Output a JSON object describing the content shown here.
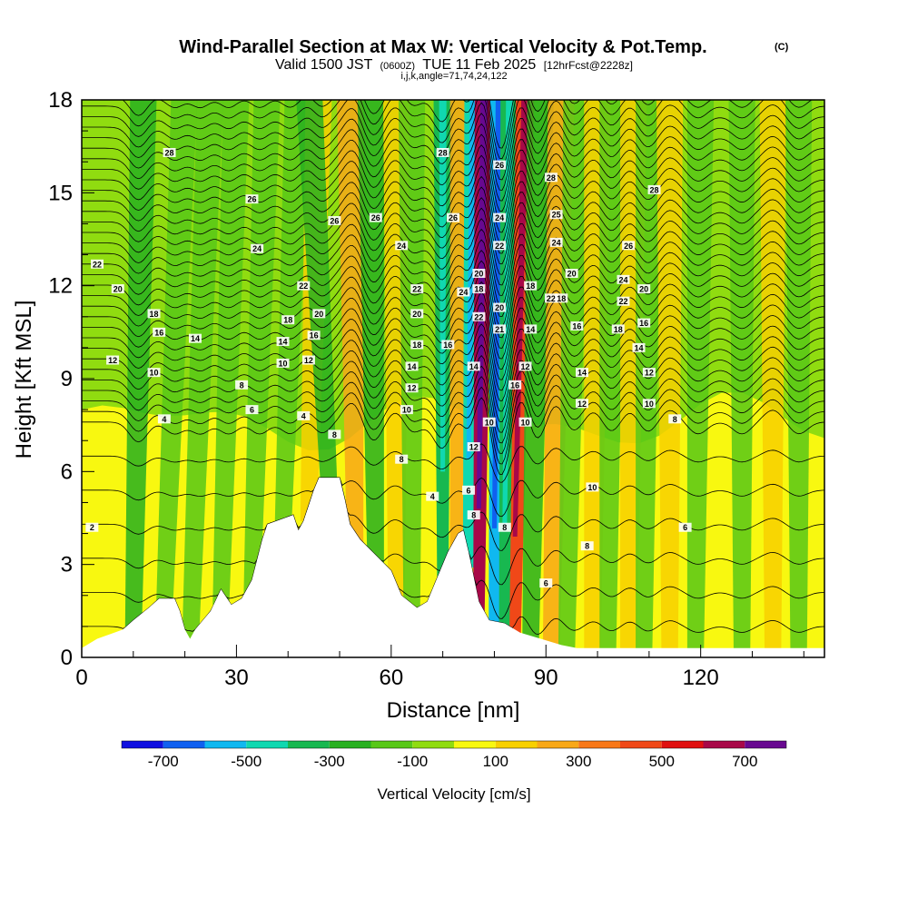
{
  "chart_data": {
    "type": "heatmap",
    "title": "Wind-Parallel Section at Max W: Vertical Velocity & Pot.Temp.",
    "title_mark": "(C)",
    "subtitle_parts": [
      "Valid 1500 JST",
      "(0600Z)",
      "TUE 11 Feb 2025",
      "[12hrFcst@2228z]"
    ],
    "subtitle2": "i,j,k,angle=71,74,24,122",
    "xlabel": "Distance [nm]",
    "ylabel": "Height [Kft MSL]",
    "xlim": [
      0,
      144
    ],
    "ylim": [
      0,
      18
    ],
    "x_ticks": [
      0,
      30,
      60,
      90,
      120
    ],
    "y_ticks": [
      0,
      3,
      6,
      9,
      12,
      15,
      18
    ],
    "colorbar": {
      "label": "Vertical Velocity [cm/s]",
      "tick_labels": [
        "-700",
        "-500",
        "-300",
        "-100",
        "100",
        "300",
        "500",
        "700"
      ],
      "bounds": [
        -800,
        800
      ],
      "colors": [
        "#1010e0",
        "#1060f0",
        "#10b8f0",
        "#10d8b0",
        "#18b850",
        "#28b020",
        "#58c818",
        "#90dc10",
        "#f8f810",
        "#f8d000",
        "#f8a818",
        "#f87818",
        "#f04818",
        "#e01010",
        "#a80848",
        "#680890"
      ]
    },
    "terrain_nm_kft": [
      [
        0,
        0.3
      ],
      [
        3,
        0.6
      ],
      [
        8,
        0.9
      ],
      [
        10,
        1.2
      ],
      [
        13,
        1.6
      ],
      [
        15,
        1.9
      ],
      [
        18,
        1.9
      ],
      [
        19,
        1.5
      ],
      [
        20,
        0.9
      ],
      [
        21,
        0.6
      ],
      [
        22,
        0.9
      ],
      [
        25,
        1.5
      ],
      [
        27,
        2.2
      ],
      [
        29,
        1.7
      ],
      [
        31,
        1.9
      ],
      [
        33,
        2.5
      ],
      [
        35,
        3.8
      ],
      [
        36,
        4.3
      ],
      [
        41,
        4.6
      ],
      [
        42,
        4.1
      ],
      [
        43,
        4.4
      ],
      [
        44,
        4.9
      ],
      [
        45,
        5.4
      ],
      [
        46,
        5.8
      ],
      [
        50,
        5.8
      ],
      [
        51,
        5.1
      ],
      [
        52,
        4.3
      ],
      [
        54,
        3.8
      ],
      [
        57,
        3.3
      ],
      [
        60,
        2.8
      ],
      [
        62,
        2.0
      ],
      [
        65,
        1.6
      ],
      [
        67,
        1.8
      ],
      [
        69,
        2.6
      ],
      [
        71,
        3.4
      ],
      [
        73,
        4.0
      ],
      [
        74,
        4.1
      ],
      [
        75,
        3.4
      ],
      [
        76,
        2.6
      ],
      [
        77,
        1.8
      ],
      [
        79,
        1.2
      ],
      [
        82,
        1.1
      ],
      [
        85,
        0.8
      ],
      [
        89,
        0.6
      ],
      [
        93,
        0.4
      ],
      [
        96,
        0.3
      ],
      [
        100,
        0.3
      ],
      [
        144,
        0.3
      ]
    ],
    "w_bands_cm_s": [
      {
        "x_bottom": 10,
        "x_top": 12,
        "w": -250
      },
      {
        "x_bottom": 16,
        "x_top": 20,
        "w": -150
      },
      {
        "x_bottom": 21,
        "x_top": 25,
        "w": -150
      },
      {
        "x_bottom": 27,
        "x_top": 30,
        "w": -150
      },
      {
        "x_bottom": 33,
        "x_top": 36,
        "w": -150
      },
      {
        "x_bottom": 39,
        "x_top": 42,
        "w": -150
      },
      {
        "x_bottom": 44,
        "x_top": 46,
        "w": 150
      },
      {
        "x_bottom": 48,
        "x_top": 44,
        "w": -250
      },
      {
        "x_bottom": 53,
        "x_top": 52,
        "w": 250
      },
      {
        "x_bottom": 57,
        "x_top": 56,
        "w": -250
      },
      {
        "x_bottom": 61,
        "x_top": 61,
        "w": 150
      },
      {
        "x_bottom": 64,
        "x_top": 64,
        "w": -150
      },
      {
        "x_bottom": 70,
        "x_top": 70,
        "w": -350
      },
      {
        "x_bottom": 73,
        "x_top": 74,
        "w": 200
      },
      {
        "x_bottom": 75,
        "x_top": 76,
        "w": -450
      },
      {
        "x_bottom": 77,
        "x_top": 78,
        "w": 650
      },
      {
        "x_bottom": 80,
        "x_top": 81,
        "w": -550
      },
      {
        "x_bottom": 82,
        "x_top": 83,
        "w": -350
      },
      {
        "x_bottom": 84,
        "x_top": 86,
        "w": 450
      },
      {
        "x_bottom": 87,
        "x_top": 89,
        "w": -300
      },
      {
        "x_bottom": 91,
        "x_top": 93,
        "w": 250
      },
      {
        "x_bottom": 94,
        "x_top": 96,
        "w": -150
      },
      {
        "x_bottom": 99,
        "x_top": 100,
        "w": 150
      },
      {
        "x_bottom": 102,
        "x_top": 103,
        "w": -150
      },
      {
        "x_bottom": 106,
        "x_top": 107,
        "w": 150
      },
      {
        "x_bottom": 109,
        "x_top": 110,
        "w": -150
      },
      {
        "x_bottom": 114,
        "x_top": 114,
        "w": 150
      },
      {
        "x_bottom": 119,
        "x_top": 120,
        "w": -150
      },
      {
        "x_bottom": 128,
        "x_top": 128,
        "w": -150
      },
      {
        "x_bottom": 134,
        "x_top": 134,
        "w": 150
      },
      {
        "x_bottom": 139,
        "x_top": 139,
        "w": -150
      }
    ],
    "theta_contour_labels": [
      {
        "x": 17,
        "y": 16.3,
        "t": "28"
      },
      {
        "x": 3,
        "y": 12.7,
        "t": "22"
      },
      {
        "x": 7,
        "y": 11.9,
        "t": "20"
      },
      {
        "x": 14,
        "y": 11.1,
        "t": "18"
      },
      {
        "x": 15,
        "y": 10.5,
        "t": "16"
      },
      {
        "x": 22,
        "y": 10.3,
        "t": "14"
      },
      {
        "x": 6,
        "y": 9.6,
        "t": "12"
      },
      {
        "x": 14,
        "y": 9.2,
        "t": "10"
      },
      {
        "x": 16,
        "y": 7.7,
        "t": "4"
      },
      {
        "x": 33,
        "y": 14.8,
        "t": "26"
      },
      {
        "x": 34,
        "y": 13.2,
        "t": "24"
      },
      {
        "x": 43,
        "y": 12.0,
        "t": "22"
      },
      {
        "x": 40,
        "y": 10.9,
        "t": "18"
      },
      {
        "x": 39,
        "y": 10.2,
        "t": "14"
      },
      {
        "x": 39,
        "y": 9.5,
        "t": "10"
      },
      {
        "x": 31,
        "y": 8.8,
        "t": "8"
      },
      {
        "x": 33,
        "y": 8.0,
        "t": "6"
      },
      {
        "x": 43,
        "y": 7.8,
        "t": "4"
      },
      {
        "x": 44,
        "y": 9.6,
        "t": "12"
      },
      {
        "x": 45,
        "y": 10.4,
        "t": "16"
      },
      {
        "x": 46,
        "y": 11.1,
        "t": "20"
      },
      {
        "x": 49,
        "y": 14.1,
        "t": "26"
      },
      {
        "x": 57,
        "y": 14.2,
        "t": "26"
      },
      {
        "x": 62,
        "y": 13.3,
        "t": "24"
      },
      {
        "x": 65,
        "y": 11.9,
        "t": "22"
      },
      {
        "x": 65,
        "y": 11.1,
        "t": "20"
      },
      {
        "x": 65,
        "y": 10.1,
        "t": "18"
      },
      {
        "x": 64,
        "y": 9.4,
        "t": "14"
      },
      {
        "x": 64,
        "y": 8.7,
        "t": "12"
      },
      {
        "x": 63,
        "y": 8.0,
        "t": "10"
      },
      {
        "x": 62,
        "y": 6.4,
        "t": "8"
      },
      {
        "x": 68,
        "y": 5.2,
        "t": "4"
      },
      {
        "x": 49,
        "y": 7.2,
        "t": "8"
      },
      {
        "x": 70,
        "y": 16.3,
        "t": "28"
      },
      {
        "x": 72,
        "y": 14.2,
        "t": "26"
      },
      {
        "x": 71,
        "y": 10.1,
        "t": "16"
      },
      {
        "x": 74,
        "y": 11.8,
        "t": "24"
      },
      {
        "x": 77,
        "y": 12.4,
        "t": "20"
      },
      {
        "x": 77,
        "y": 11.9,
        "t": "18"
      },
      {
        "x": 77,
        "y": 11.0,
        "t": "22"
      },
      {
        "x": 76,
        "y": 9.4,
        "t": "14"
      },
      {
        "x": 79,
        "y": 7.6,
        "t": "10"
      },
      {
        "x": 76,
        "y": 6.8,
        "t": "12"
      },
      {
        "x": 75,
        "y": 5.4,
        "t": "6"
      },
      {
        "x": 76,
        "y": 4.6,
        "t": "8"
      },
      {
        "x": 81,
        "y": 15.9,
        "t": "26"
      },
      {
        "x": 81,
        "y": 14.2,
        "t": "24"
      },
      {
        "x": 81,
        "y": 13.3,
        "t": "22"
      },
      {
        "x": 81,
        "y": 11.3,
        "t": "20"
      },
      {
        "x": 81,
        "y": 10.6,
        "t": "21"
      },
      {
        "x": 87,
        "y": 12.0,
        "t": "18"
      },
      {
        "x": 87,
        "y": 10.6,
        "t": "14"
      },
      {
        "x": 86,
        "y": 9.4,
        "t": "12"
      },
      {
        "x": 84,
        "y": 8.8,
        "t": "16"
      },
      {
        "x": 86,
        "y": 7.6,
        "t": "10"
      },
      {
        "x": 82,
        "y": 4.2,
        "t": "8"
      },
      {
        "x": 91,
        "y": 11.6,
        "t": "22"
      },
      {
        "x": 91,
        "y": 15.5,
        "t": "28"
      },
      {
        "x": 92,
        "y": 14.3,
        "t": "25"
      },
      {
        "x": 92,
        "y": 13.4,
        "t": "24"
      },
      {
        "x": 95,
        "y": 12.4,
        "t": "20"
      },
      {
        "x": 93,
        "y": 11.6,
        "t": "18"
      },
      {
        "x": 96,
        "y": 10.7,
        "t": "16"
      },
      {
        "x": 97,
        "y": 9.2,
        "t": "14"
      },
      {
        "x": 97,
        "y": 8.2,
        "t": "12"
      },
      {
        "x": 99,
        "y": 5.5,
        "t": "10"
      },
      {
        "x": 98,
        "y": 3.6,
        "t": "8"
      },
      {
        "x": 90,
        "y": 2.4,
        "t": "6"
      },
      {
        "x": 111,
        "y": 15.1,
        "t": "28"
      },
      {
        "x": 106,
        "y": 13.3,
        "t": "26"
      },
      {
        "x": 105,
        "y": 12.2,
        "t": "24"
      },
      {
        "x": 105,
        "y": 11.5,
        "t": "22"
      },
      {
        "x": 109,
        "y": 11.9,
        "t": "20"
      },
      {
        "x": 109,
        "y": 10.8,
        "t": "16"
      },
      {
        "x": 104,
        "y": 10.6,
        "t": "18"
      },
      {
        "x": 108,
        "y": 10.0,
        "t": "14"
      },
      {
        "x": 110,
        "y": 9.2,
        "t": "12"
      },
      {
        "x": 110,
        "y": 8.2,
        "t": "10"
      },
      {
        "x": 115,
        "y": 7.7,
        "t": "8"
      },
      {
        "x": 117,
        "y": 4.2,
        "t": "6"
      },
      {
        "x": 2,
        "y": 4.2,
        "t": "2"
      }
    ]
  }
}
